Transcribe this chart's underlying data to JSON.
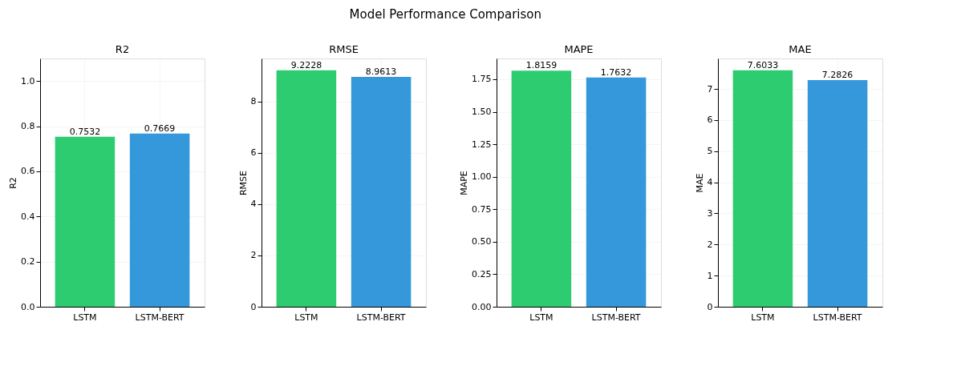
{
  "chart_data": [
    {
      "type": "bar",
      "title": "R2",
      "ylabel": "R2",
      "annotations": [
        "Model Performance Comparison"
      ],
      "categories": [
        "LSTM",
        "LSTM-BERT"
      ],
      "values": [
        0.7532,
        0.7669
      ],
      "colors": [
        "#2ecc71",
        "#3498db"
      ],
      "ylim": [
        0,
        1.1
      ],
      "yticks": [
        {
          "value": 0,
          "label": "0.0"
        },
        {
          "value": 0.2,
          "label": "0.2"
        },
        {
          "value": 0.4,
          "label": "0.4"
        },
        {
          "value": 0.6,
          "label": "0.6"
        },
        {
          "value": 0.8,
          "label": "0.8"
        },
        {
          "value": 1,
          "label": "1.0"
        }
      ],
      "grid": true,
      "data_labels": true
    },
    {
      "type": "bar",
      "title": "RMSE",
      "ylabel": "RMSE",
      "categories": [
        "LSTM",
        "LSTM-BERT"
      ],
      "values": [
        9.2228,
        8.9613
      ],
      "colors": [
        "#2ecc71",
        "#3498db"
      ],
      "ylim": [
        0,
        9.68
      ],
      "yticks": [
        0,
        2,
        4,
        6,
        8
      ],
      "grid": true,
      "data_labels": true
    },
    {
      "type": "bar",
      "title": "MAPE",
      "ylabel": "MAPE",
      "categories": [
        "LSTM",
        "LSTM-BERT"
      ],
      "values": [
        1.8159,
        1.7632
      ],
      "colors": [
        "#2ecc71",
        "#3498db"
      ],
      "ylim": [
        0,
        1.91
      ],
      "yticks": [
        {
          "value": 0,
          "label": "0.00"
        },
        {
          "value": 0.25,
          "label": "0.25"
        },
        {
          "value": 0.5,
          "label": "0.50"
        },
        {
          "value": 0.75,
          "label": "0.75"
        },
        {
          "value": 1,
          "label": "1.00"
        },
        {
          "value": 1.25,
          "label": "1.25"
        },
        {
          "value": 1.5,
          "label": "1.50"
        },
        {
          "value": 1.75,
          "label": "1.75"
        }
      ],
      "grid": true,
      "data_labels": true
    },
    {
      "type": "bar",
      "title": "MAE",
      "ylabel": "MAE",
      "categories": [
        "LSTM",
        "LSTM-BERT"
      ],
      "values": [
        7.6033,
        7.2826
      ],
      "colors": [
        "#2ecc71",
        "#3498db"
      ],
      "ylim": [
        0,
        7.98
      ],
      "yticks": [
        0,
        1,
        2,
        3,
        4,
        5,
        6,
        7
      ],
      "grid": true,
      "data_labels": true
    }
  ]
}
